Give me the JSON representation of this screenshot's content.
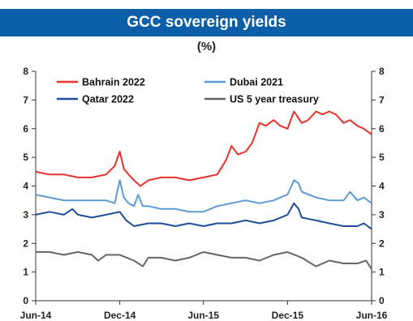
{
  "chart_data": {
    "type": "line",
    "title": "GCC sovereign yields",
    "subtitle": "(%)",
    "ylim": [
      0,
      8
    ],
    "yticks": [
      "0",
      "1",
      "2",
      "3",
      "4",
      "5",
      "6",
      "7",
      "8"
    ],
    "xlim": [
      "2014-06-01",
      "2016-06-01"
    ],
    "xticks": [
      {
        "label": "Jun-14",
        "date": "2014-06-01"
      },
      {
        "label": "Dec-14",
        "date": "2014-12-01"
      },
      {
        "label": "Jun-15",
        "date": "2015-06-01"
      },
      {
        "label": "Dec-15",
        "date": "2015-12-01"
      },
      {
        "label": "Jun-16",
        "date": "2016-06-01"
      }
    ],
    "legend_position": "top",
    "series": [
      {
        "name": "Bahrain 2022",
        "color": "#e8312a",
        "x": [
          "2014-06-01",
          "2014-07-01",
          "2014-08-01",
          "2014-09-01",
          "2014-10-01",
          "2014-11-01",
          "2014-11-20",
          "2014-12-01",
          "2014-12-10",
          "2014-12-20",
          "2015-01-01",
          "2015-01-15",
          "2015-02-01",
          "2015-03-01",
          "2015-04-01",
          "2015-05-01",
          "2015-06-01",
          "2015-07-01",
          "2015-07-20",
          "2015-08-01",
          "2015-08-15",
          "2015-09-01",
          "2015-09-15",
          "2015-10-01",
          "2015-10-15",
          "2015-11-01",
          "2015-11-15",
          "2015-12-01",
          "2015-12-15",
          "2016-01-01",
          "2016-01-15",
          "2016-02-01",
          "2016-02-15",
          "2016-03-01",
          "2016-03-15",
          "2016-04-01",
          "2016-04-15",
          "2016-05-01",
          "2016-05-15",
          "2016-06-01"
        ],
        "y": [
          4.5,
          4.4,
          4.4,
          4.3,
          4.3,
          4.4,
          4.7,
          5.2,
          4.6,
          4.4,
          4.2,
          4.0,
          4.2,
          4.3,
          4.3,
          4.2,
          4.3,
          4.4,
          4.9,
          5.4,
          5.1,
          5.2,
          5.5,
          6.2,
          6.1,
          6.3,
          6.1,
          6.0,
          6.6,
          6.2,
          6.3,
          6.6,
          6.5,
          6.6,
          6.5,
          6.2,
          6.3,
          6.1,
          6.0,
          5.8
        ]
      },
      {
        "name": "Dubai 2021",
        "color": "#5b9bd5",
        "x": [
          "2014-06-01",
          "2014-07-01",
          "2014-08-01",
          "2014-09-01",
          "2014-10-01",
          "2014-11-01",
          "2014-11-20",
          "2014-12-01",
          "2014-12-10",
          "2014-12-20",
          "2015-01-01",
          "2015-01-10",
          "2015-01-20",
          "2015-02-01",
          "2015-03-01",
          "2015-04-01",
          "2015-05-01",
          "2015-06-01",
          "2015-07-01",
          "2015-08-01",
          "2015-09-01",
          "2015-10-01",
          "2015-11-01",
          "2015-11-15",
          "2015-12-01",
          "2015-12-15",
          "2015-12-25",
          "2016-01-01",
          "2016-02-01",
          "2016-03-01",
          "2016-04-01",
          "2016-04-15",
          "2016-05-01",
          "2016-05-15",
          "2016-06-01"
        ],
        "y": [
          3.7,
          3.6,
          3.5,
          3.5,
          3.5,
          3.5,
          3.4,
          4.2,
          3.6,
          3.4,
          3.3,
          3.7,
          3.3,
          3.3,
          3.2,
          3.2,
          3.1,
          3.1,
          3.3,
          3.4,
          3.5,
          3.4,
          3.5,
          3.6,
          3.7,
          4.2,
          4.1,
          3.8,
          3.6,
          3.5,
          3.5,
          3.8,
          3.5,
          3.6,
          3.4
        ]
      },
      {
        "name": "Qatar 2022",
        "color": "#1f4e99",
        "x": [
          "2014-06-01",
          "2014-07-01",
          "2014-08-01",
          "2014-08-20",
          "2014-09-01",
          "2014-10-01",
          "2014-11-01",
          "2014-12-01",
          "2014-12-15",
          "2015-01-01",
          "2015-02-01",
          "2015-03-01",
          "2015-04-01",
          "2015-05-01",
          "2015-06-01",
          "2015-07-01",
          "2015-08-01",
          "2015-09-01",
          "2015-10-01",
          "2015-11-01",
          "2015-12-01",
          "2015-12-15",
          "2015-12-25",
          "2016-01-01",
          "2016-02-01",
          "2016-03-01",
          "2016-04-01",
          "2016-05-01",
          "2016-05-15",
          "2016-06-01"
        ],
        "y": [
          3.0,
          3.1,
          3.0,
          3.2,
          3.0,
          2.9,
          3.0,
          3.1,
          2.8,
          2.6,
          2.7,
          2.7,
          2.6,
          2.7,
          2.6,
          2.7,
          2.7,
          2.8,
          2.7,
          2.8,
          3.0,
          3.4,
          3.2,
          2.9,
          2.8,
          2.7,
          2.6,
          2.6,
          2.7,
          2.5
        ]
      },
      {
        "name": "US 5 year treasury",
        "color": "#666666",
        "x": [
          "2014-06-01",
          "2014-07-01",
          "2014-08-01",
          "2014-09-01",
          "2014-10-01",
          "2014-10-15",
          "2014-11-01",
          "2014-12-01",
          "2015-01-01",
          "2015-01-20",
          "2015-02-01",
          "2015-03-01",
          "2015-04-01",
          "2015-05-01",
          "2015-06-01",
          "2015-07-01",
          "2015-08-01",
          "2015-09-01",
          "2015-10-01",
          "2015-11-01",
          "2015-12-01",
          "2016-01-01",
          "2016-02-01",
          "2016-03-01",
          "2016-04-01",
          "2016-05-01",
          "2016-05-20",
          "2016-06-01"
        ],
        "y": [
          1.7,
          1.7,
          1.6,
          1.7,
          1.6,
          1.4,
          1.6,
          1.6,
          1.4,
          1.2,
          1.5,
          1.5,
          1.4,
          1.5,
          1.7,
          1.6,
          1.5,
          1.5,
          1.4,
          1.6,
          1.7,
          1.5,
          1.2,
          1.4,
          1.3,
          1.3,
          1.4,
          1.1
        ]
      }
    ]
  }
}
